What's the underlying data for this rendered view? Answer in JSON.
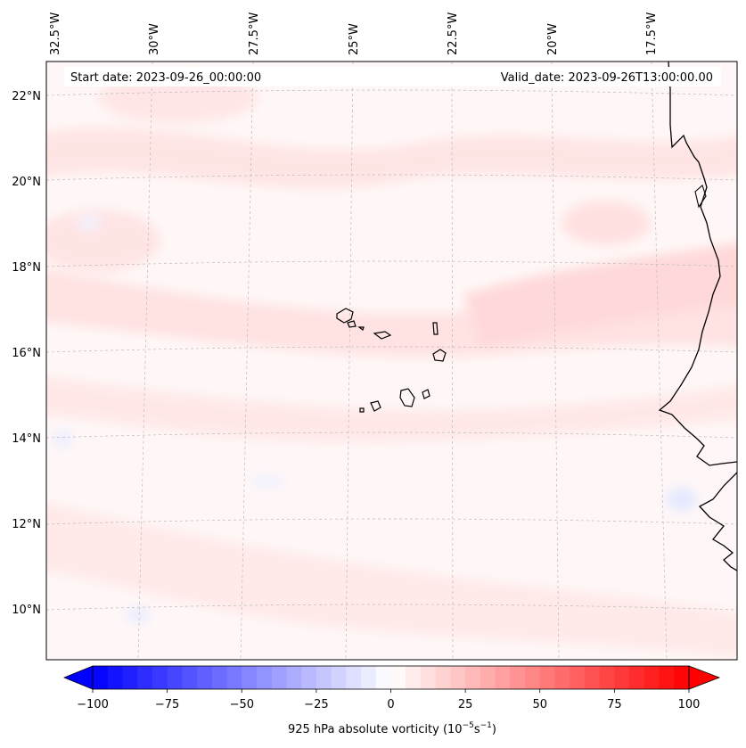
{
  "header": {
    "start_label": "Start date: 2023-09-26_00:00:00",
    "valid_label": "Valid_date: 2023-09-26T13:00:00.00"
  },
  "map": {
    "projection": "regional lat-lon",
    "region": "Cabo Verde / West African coast",
    "field": "925 hPa absolute vorticity",
    "lon_ticks": [
      "32.5°W",
      "30°W",
      "27.5°W",
      "25°W",
      "22.5°W",
      "20°W",
      "17.5°W"
    ],
    "lat_ticks": [
      "22°N",
      "20°N",
      "18°N",
      "16°N",
      "14°N",
      "12°N",
      "10°N"
    ]
  },
  "colorbar": {
    "label": "925 hPa absolute vorticity",
    "units_base": "(10",
    "units_exp1": "−5",
    "units_mid": "s",
    "units_exp2": "−1",
    "units_end": ")",
    "min": -100,
    "max": 100,
    "step": 5,
    "ticks": [
      "−100",
      "−75",
      "−50",
      "−25",
      "0",
      "25",
      "50",
      "75",
      "100"
    ],
    "colormap": "bwr",
    "extend": "both",
    "colors": {
      "low": "#0000ff",
      "mid": "#ffffff",
      "high": "#ff0000"
    }
  }
}
